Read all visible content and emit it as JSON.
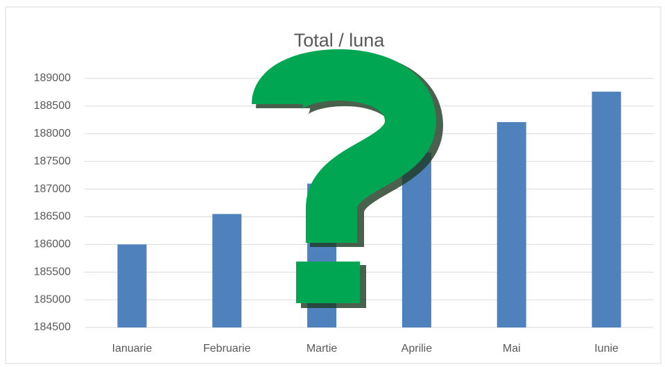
{
  "chart_data": {
    "type": "bar",
    "title": "Total / luna",
    "categories": [
      "Ianuarie",
      "Februarie",
      "Martie",
      "Aprilie",
      "Mai",
      "Iunie"
    ],
    "values": [
      186000,
      186550,
      187100,
      187660,
      188210,
      188760
    ],
    "color": "#4f81bd",
    "ylim": [
      184500,
      189000
    ],
    "yticks": [
      184500,
      185000,
      185500,
      186000,
      186500,
      187000,
      187500,
      188000,
      188500,
      189000
    ],
    "grid": true
  }
}
